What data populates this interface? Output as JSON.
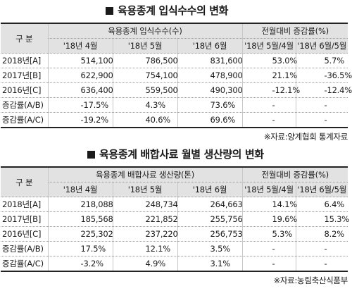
{
  "table1": {
    "title": "육용종계 입식수수의 변화",
    "header": {
      "group_label": "구 분",
      "group_main": "육용종계 입식수수(수)",
      "group_change": "전월대비 증감률(%)",
      "cols": [
        "'18년 4월",
        "'18년 5월",
        "'18년 6월",
        "'18년 5월/4월",
        "'18년 6월/5월"
      ]
    },
    "rows": [
      {
        "label": "2018년[A]",
        "cells": [
          "514,100",
          "786,500",
          "831,600",
          "53.0%",
          "5.7%"
        ]
      },
      {
        "label": "2017년[B]",
        "cells": [
          "622,900",
          "754,100",
          "478,900",
          "21.1%",
          "-36.5%"
        ]
      },
      {
        "label": "2016년[C]",
        "cells": [
          "636,400",
          "559,500",
          "490,300",
          "-12.1%",
          "-12.4%"
        ]
      },
      {
        "label": "증감률(A/B)",
        "cells": [
          "-17.5%",
          "4.3%",
          "73.6%",
          "-",
          "-"
        ]
      },
      {
        "label": "증감률(A/C)",
        "cells": [
          "-19.2%",
          "40.6%",
          "69.6%",
          "-",
          "-"
        ]
      }
    ],
    "source": "※자료:양계협회 통계자료"
  },
  "table2": {
    "title": "육용종계 배합사료 월별 생산량의 변화",
    "header": {
      "group_label": "구 분",
      "group_main": "육용종계 배합사료 생산량(톤)",
      "group_change": "전월대비 증감률(%)",
      "cols": [
        "'18년 4월",
        "'18년 5월",
        "'18년 6월",
        "'18년 5월/4월",
        "'18년 6월/5월"
      ]
    },
    "rows": [
      {
        "label": "2018년[A]",
        "cells": [
          "218,088",
          "248,734",
          "264,663",
          "14.1%",
          "6.4%"
        ]
      },
      {
        "label": "2017년[B]",
        "cells": [
          "185,568",
          "221,852",
          "255,756",
          "19.6%",
          "15.3%"
        ]
      },
      {
        "label": "2016년[C]",
        "cells": [
          "225,302",
          "237,220",
          "256,753",
          "5.3%",
          "8.2%"
        ]
      },
      {
        "label": "증감률(A/B)",
        "cells": [
          "17.5%",
          "12.1%",
          "3.5%",
          "-",
          "-"
        ]
      },
      {
        "label": "증감률(A/C)",
        "cells": [
          "-3.2%",
          "4.9%",
          "3.1%",
          "-",
          "-"
        ]
      }
    ],
    "source": "※자료:농림축산식품부"
  }
}
